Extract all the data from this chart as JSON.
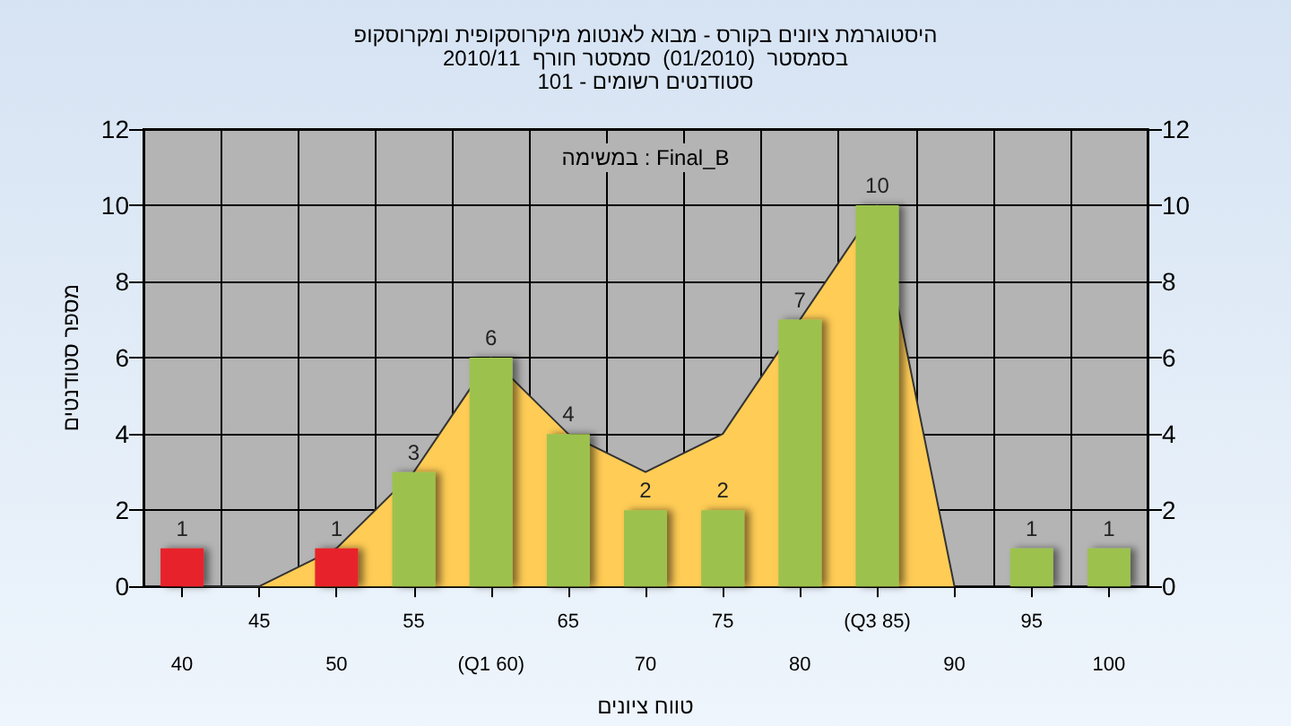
{
  "chart_data": {
    "type": "bar",
    "title": "היסטוגרמת ציונים בקורס - מבוא לאנטומ מיקרוסקופית ומקרוסקופ",
    "subtitle": "בסמסטר  (01/2010)  סמסטר חורף  2010/11\nסטודנטים רשומים - 101",
    "xlabel": "טווח ציונים",
    "ylabel": "מספר סטודנטים",
    "annotations": [
      "במשימה : Final_B"
    ],
    "categories": [
      "40",
      "45",
      "50",
      "55",
      "(Q1 60)",
      "65",
      "70",
      "75",
      "80",
      "(Q3 85)",
      "90",
      "95",
      "100"
    ],
    "series": [
      {
        "type": "area",
        "color": "#ffcc55",
        "values": [
          0,
          0,
          1,
          3,
          6,
          4,
          3,
          4,
          7,
          10,
          0,
          null,
          null
        ]
      },
      {
        "colors": [
          "#e8202a",
          "#e8202a",
          "#e8202a",
          "#9cc24e",
          "#9cc24e",
          "#9cc24e",
          "#9cc24e",
          "#9cc24e",
          "#9cc24e",
          "#9cc24e",
          "#9cc24e",
          "#9cc24e",
          "#9cc24e"
        ],
        "values": [
          1,
          0,
          1,
          3,
          6,
          4,
          2,
          2,
          7,
          10,
          0,
          1,
          1
        ],
        "value_labels": [
          "1",
          null,
          "1",
          "3",
          "6",
          "4",
          "2",
          "2",
          "7",
          "10",
          null,
          "1",
          "1"
        ]
      }
    ],
    "ylim": [
      0,
      12
    ],
    "yticks": [
      0,
      2,
      4,
      6,
      8,
      10,
      12
    ],
    "y2lim": [
      0,
      12
    ],
    "y2ticks": [
      0,
      2,
      4,
      6,
      8,
      10,
      12
    ],
    "grid": true
  }
}
